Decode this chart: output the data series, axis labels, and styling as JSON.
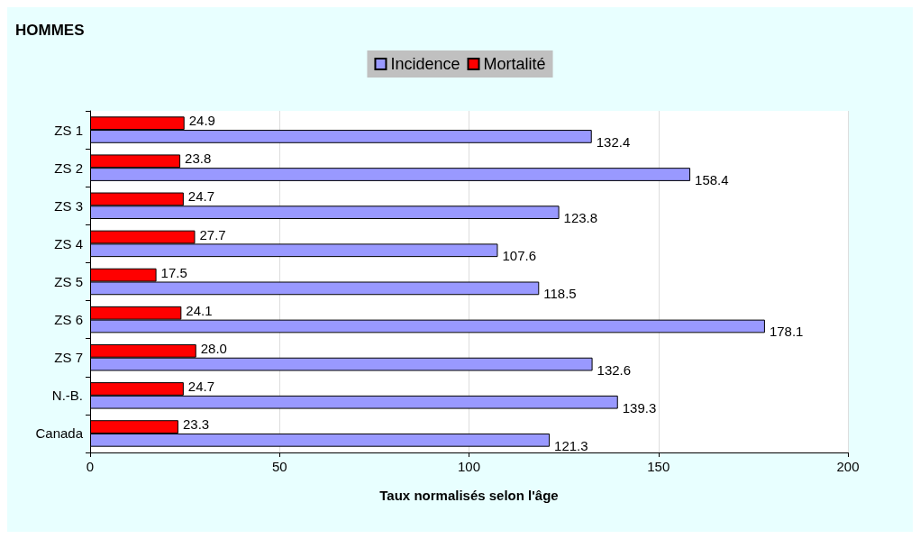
{
  "chart_data": {
    "type": "bar",
    "orientation": "horizontal",
    "title": "HOMMES",
    "xlabel": "Taux normalisés selon l'âge",
    "categories": [
      "ZS 1",
      "ZS 2",
      "ZS 3",
      "ZS 4",
      "ZS 5",
      "ZS 6",
      "ZS 7",
      "N.-B.",
      "Canada"
    ],
    "series": [
      {
        "name": "Incidence",
        "color": "#9999ff",
        "values": [
          132.4,
          158.4,
          123.8,
          107.6,
          118.5,
          178.1,
          132.6,
          139.3,
          121.3
        ]
      },
      {
        "name": "Mortalité",
        "color": "#ff0000",
        "values": [
          24.9,
          23.8,
          24.7,
          27.7,
          17.5,
          24.1,
          28.0,
          24.7,
          23.3
        ]
      }
    ],
    "value_labels": [
      [
        "132.4",
        "158.4",
        "123.8",
        "107.6",
        "118.5",
        "178.1",
        "132.6",
        "139.3",
        "121.3"
      ],
      [
        "24.9",
        "23.8",
        "24.7",
        "27.7",
        "17.5",
        "24.1",
        "28.0",
        "24.7",
        "23.3"
      ]
    ],
    "xlim": [
      0,
      200
    ],
    "xticks": [
      0,
      50,
      100,
      150,
      200
    ],
    "grid": "x",
    "legend": "top"
  }
}
